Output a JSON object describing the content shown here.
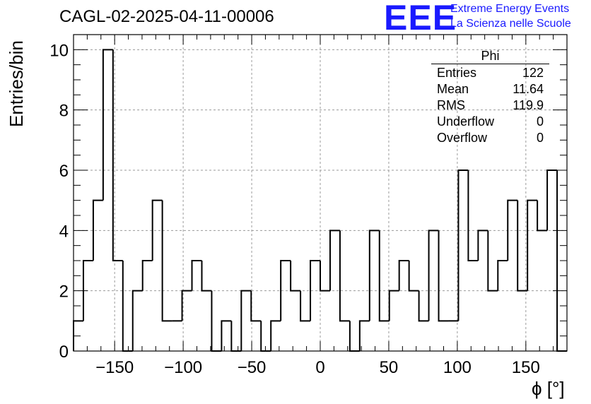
{
  "title": "CAGL-02-2025-04-11-00006",
  "logo": {
    "mark": "EEE",
    "line1": "Extreme Energy Events",
    "line2": "La Scienza nelle Scuole"
  },
  "stats": {
    "name": "Phi",
    "rows": [
      {
        "label": "Entries",
        "value": "122"
      },
      {
        "label": "Mean",
        "value": "11.64"
      },
      {
        "label": "RMS",
        "value": "119.9"
      },
      {
        "label": "Underflow",
        "value": "0"
      },
      {
        "label": "Overflow",
        "value": "0"
      }
    ]
  },
  "chart_data": {
    "type": "bar",
    "style": "step-histogram",
    "xlabel": "ϕ [°]",
    "ylabel": "Entries/bin",
    "xlim": [
      -180,
      180
    ],
    "ylim": [
      0,
      10.5
    ],
    "bin_width": 7.2,
    "bins_start": -180,
    "values": [
      1,
      3,
      5,
      10,
      3,
      0,
      2,
      3,
      5,
      1,
      1,
      2,
      3,
      2,
      0,
      1,
      0,
      2,
      1,
      0,
      1,
      3,
      2,
      1,
      3,
      2,
      4,
      1,
      0,
      1,
      4,
      1,
      2,
      3,
      2,
      1,
      4,
      1,
      1,
      6,
      3,
      4,
      2,
      3,
      5,
      2,
      5,
      4,
      6,
      0
    ],
    "x_ticks": [
      -150,
      -100,
      -50,
      0,
      50,
      100,
      150
    ],
    "x_tick_labels": [
      "−150",
      "−100",
      "−50",
      "0",
      "50",
      "100",
      "150"
    ],
    "y_ticks": [
      0,
      2,
      4,
      6,
      8,
      10
    ],
    "y_tick_labels": [
      "0",
      "2",
      "4",
      "6",
      "8",
      "10"
    ],
    "grid": true,
    "line_color": "#000000",
    "grid_color": "#9a9a9a"
  }
}
